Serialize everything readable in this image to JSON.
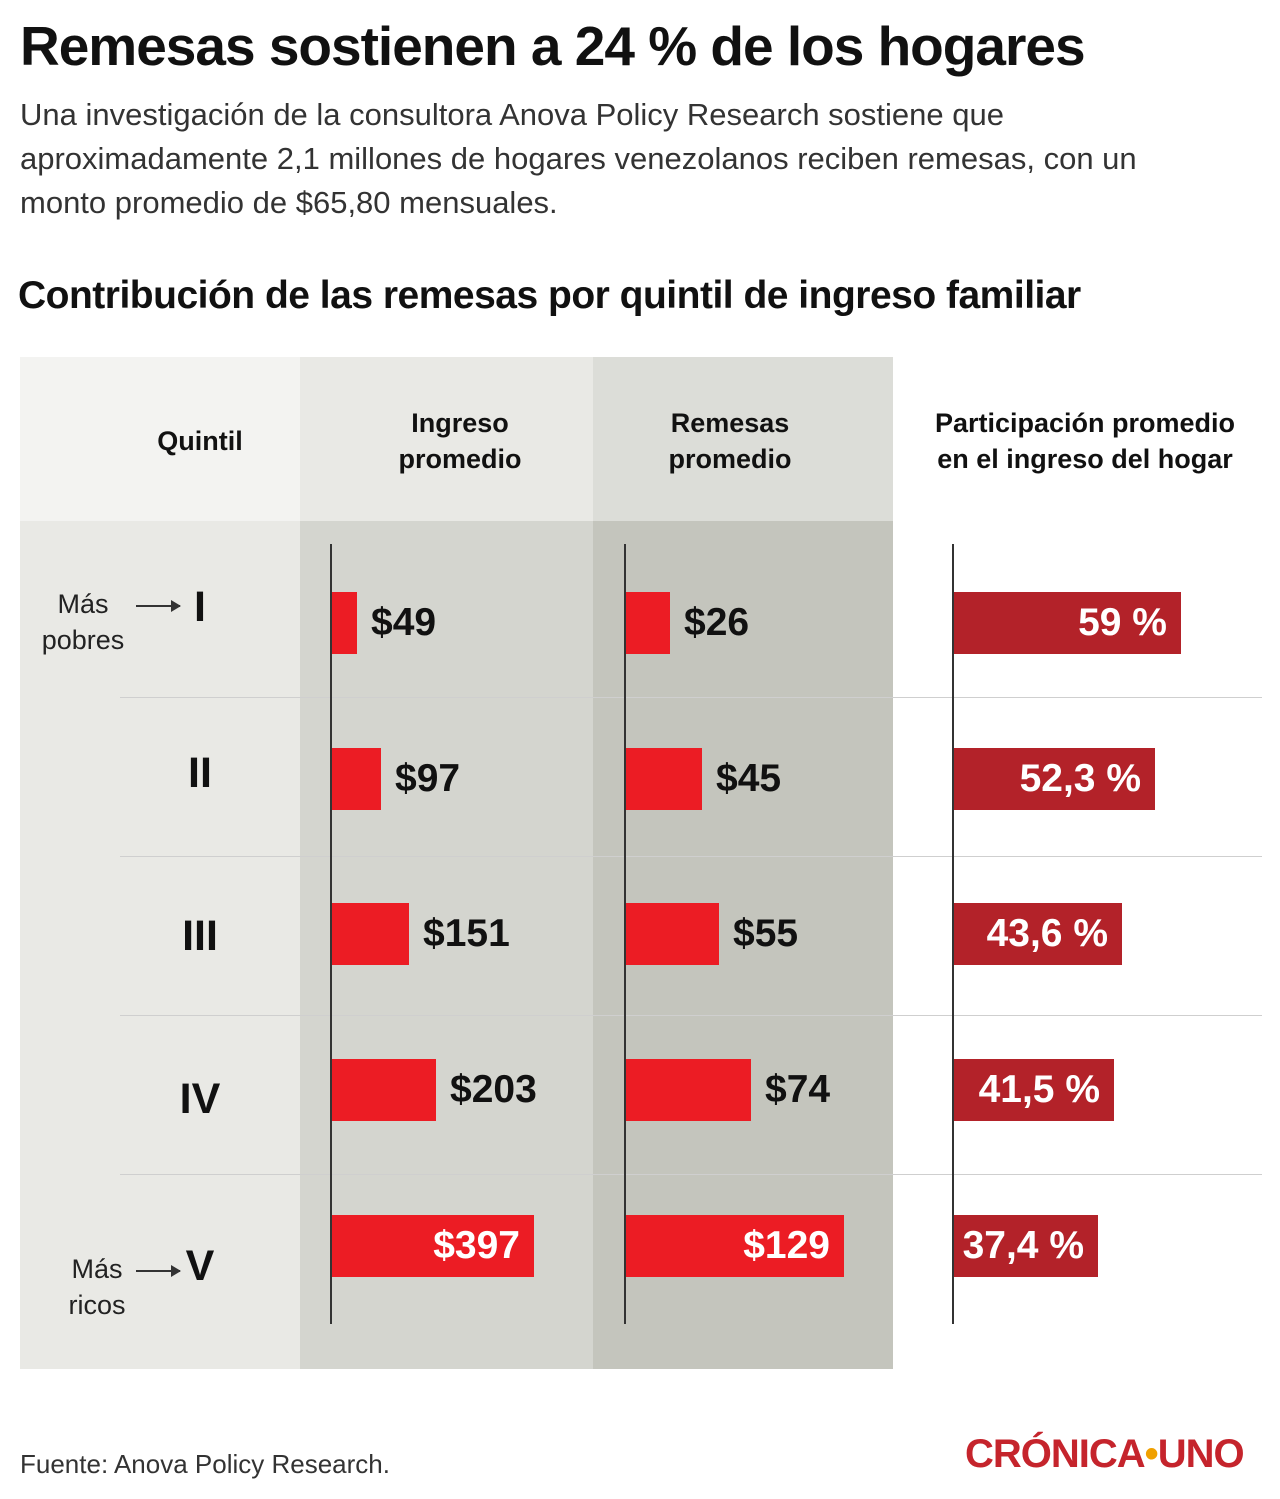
{
  "title": "Remesas sostienen a 24 % de los hogares",
  "subtitle": "Una investigación de la consultora Anova Policy Research sostiene que aproximadamente 2,1 millones de hogares venezolanos reciben remesas, con un monto promedio de $65,80 mensuales.",
  "section_title": "Contribución de las remesas por quintil de ingreso familiar",
  "headers": {
    "quintil": "Quintil",
    "ingreso": "Ingreso\npromedio",
    "remesas": "Remesas\npromedio",
    "participacion": "Participación promedio\nen el ingreso del hogar"
  },
  "side_labels": {
    "top": "Más\npobres",
    "bottom": "Más\nricos"
  },
  "source": "Fuente: Anova Policy Research.",
  "brand": {
    "left": "CRÓNICA",
    "dot": "•",
    "right": "UNO"
  },
  "colors": {
    "bar_bright": "#ec1c24",
    "bar_dark": "#b32229",
    "panel_light": "#e9e9e5",
    "panel_mid": "#d4d5cf",
    "panel_dark": "#c4c5bd",
    "header_light": "#f3f3f1",
    "brand": "#c5242c"
  },
  "chart_data": {
    "type": "bar",
    "categories": [
      "I",
      "II",
      "III",
      "IV",
      "V"
    ],
    "series": [
      {
        "name": "Ingreso promedio",
        "values": [
          49,
          97,
          151,
          203,
          397
        ],
        "labels": [
          "$49",
          "$97",
          "$151",
          "$203",
          "$397"
        ]
      },
      {
        "name": "Remesas promedio",
        "values": [
          26,
          45,
          55,
          74,
          129
        ],
        "labels": [
          "$26",
          "$45",
          "$55",
          "$74",
          "$129"
        ]
      },
      {
        "name": "Participación promedio en el ingreso del hogar",
        "values": [
          59,
          52.3,
          43.6,
          41.5,
          37.4
        ],
        "labels": [
          "59 %",
          "52,3 %",
          "43,6 %",
          "41,5 %",
          "37,4 %"
        ]
      }
    ]
  }
}
